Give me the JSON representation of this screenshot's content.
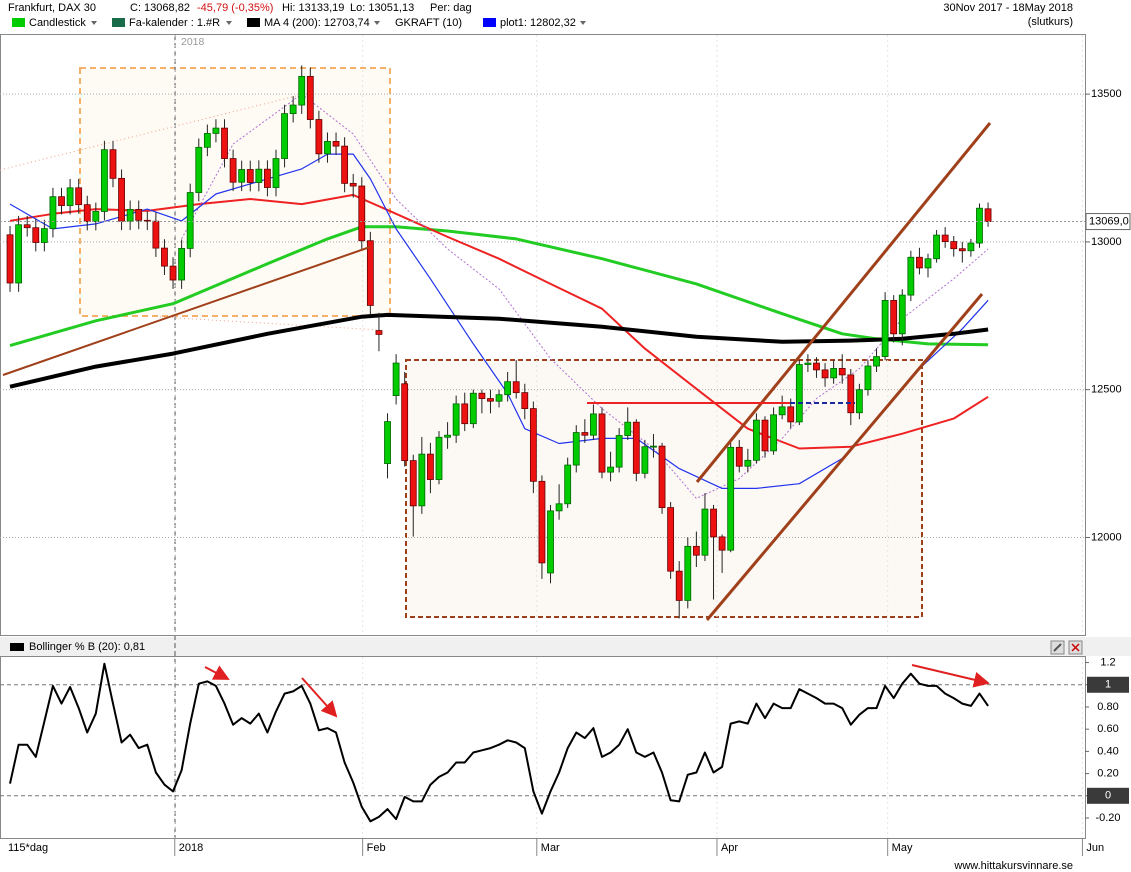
{
  "header": {
    "instrument": "Frankfurt, DAX 30",
    "close": "C: 13068,82",
    "change": "-45,79 (-0,35%)",
    "high": "Hi: 13133,19",
    "low": "Lo: 13051,13",
    "period": "Per: dag",
    "date_range": "30Nov 2017 - 18May 2018",
    "price_type": "(slutkurs)",
    "legend": [
      {
        "name": "Candlestick",
        "color": "#00cc00"
      },
      {
        "name": "Fa-kalender : 1.#R",
        "color": "#1a6b4a"
      },
      {
        "name": "MA 4 (200): 12703,74",
        "color": "#000000"
      },
      {
        "name": "GKRAFT (10)"
      },
      {
        "name": "plot1: 12802,32",
        "color": "#0000ff"
      }
    ],
    "crosshair_label": "2018",
    "period_label": "115*dag",
    "footer": "www.hittakursvinnare.se"
  },
  "chart_data": [
    {
      "type": "candlestick",
      "up_color": "#00cc00",
      "down_color": "#ee1111",
      "last_label": "13069,0",
      "x": [
        0,
        1,
        2,
        3,
        4,
        5,
        6,
        7,
        8,
        9,
        10,
        11,
        12,
        13,
        14,
        15,
        16,
        17,
        18,
        19,
        20,
        21,
        22,
        23,
        24,
        25,
        26,
        27,
        28,
        29,
        30,
        31,
        32,
        33,
        34,
        35,
        36,
        37,
        38,
        39,
        40,
        41,
        42,
        43,
        44,
        45,
        46,
        47,
        48,
        49,
        50,
        51,
        52,
        53,
        54,
        55,
        56,
        57,
        58,
        59,
        60,
        61,
        62,
        63,
        64,
        65,
        66,
        67,
        68,
        69,
        70,
        71,
        72,
        73,
        74,
        75,
        76,
        77,
        78,
        79,
        80,
        81,
        82,
        83,
        84,
        85,
        86,
        87,
        88,
        89,
        90,
        91,
        92,
        93,
        94,
        95,
        96,
        97,
        98,
        99,
        100,
        101,
        102,
        103,
        104,
        105,
        106,
        107,
        108,
        109,
        110,
        111,
        112,
        113,
        114
      ],
      "open": [
        13024,
        12861,
        13058,
        13048,
        12998,
        13045,
        13153,
        13123,
        13183,
        13126,
        13069,
        13103,
        13312,
        13215,
        13070,
        13110,
        13073,
        13070,
        12979,
        12918,
        12871,
        12978,
        13167,
        13320,
        13367,
        13385,
        13282,
        13202,
        13245,
        13201,
        13246,
        13184,
        13282,
        13434,
        13463,
        13560,
        13414,
        13298,
        13340,
        13324,
        13198,
        13189,
        13004,
        12700,
        12250,
        12480,
        12520,
        12260,
        12107,
        12282,
        12196,
        12339,
        12346,
        12452,
        12385,
        12488,
        12470,
        12461,
        12483,
        12527,
        12490,
        12436,
        12190,
        11880,
        12090,
        12114,
        12245,
        12355,
        12346,
        12418,
        12221,
        12238,
        12345,
        12390,
        12217,
        12307,
        12309,
        12101,
        11886,
        11787,
        11970,
        11940,
        12096,
        12002,
        11957,
        12305,
        12241,
        12261,
        12397,
        12293,
        12415,
        12442,
        12391,
        12585,
        12590,
        12567,
        12540,
        12572,
        12550,
        12422,
        12500,
        12580,
        12612,
        12802,
        12689,
        12820,
        12948,
        12912,
        12943,
        13023,
        13001,
        12977,
        12970,
        12996,
        13112
      ],
      "high": [
        13054,
        13088,
        13088,
        13078,
        13075,
        13183,
        13183,
        13213,
        13213,
        13156,
        13133,
        13342,
        13342,
        13245,
        13140,
        13140,
        13103,
        13100,
        13009,
        12948,
        13008,
        13197,
        13350,
        13397,
        13415,
        13415,
        13312,
        13275,
        13275,
        13276,
        13276,
        13312,
        13464,
        13493,
        13597,
        13590,
        13444,
        13370,
        13370,
        13354,
        13230,
        13219,
        13034,
        12760,
        12420,
        12620,
        12560,
        12280,
        12340,
        12320,
        12360,
        12390,
        12480,
        12490,
        12500,
        12500,
        12500,
        12500,
        12560,
        12600,
        12520,
        12460,
        12210,
        12110,
        12180,
        12270,
        12380,
        12400,
        12450,
        12440,
        12290,
        12370,
        12440,
        12400,
        12330,
        12350,
        12320,
        12120,
        11920,
        12000,
        12020,
        12150,
        12110,
        12010,
        12320,
        12330,
        12300,
        12420,
        12410,
        12440,
        12480,
        12470,
        12600,
        12620,
        12610,
        12590,
        12600,
        12620,
        12570,
        12520,
        12600,
        12640,
        12830,
        12820,
        12840,
        12970,
        12980,
        12960,
        13040,
        13050,
        13020,
        13000,
        13010,
        13130,
        13133.19
      ],
      "low": [
        12831,
        12831,
        13018,
        12968,
        12968,
        13015,
        13093,
        13093,
        13096,
        13039,
        13039,
        13073,
        13185,
        13040,
        13040,
        13043,
        13040,
        12949,
        12888,
        12841,
        12841,
        12948,
        13137,
        13290,
        13337,
        13252,
        13172,
        13172,
        13171,
        13171,
        13154,
        13154,
        13252,
        13404,
        13433,
        13384,
        13268,
        13268,
        13294,
        13168,
        13150,
        12974,
        12755,
        12630,
        12200,
        12450,
        12240,
        12003,
        12080,
        12150,
        12180,
        12300,
        12320,
        12360,
        12370,
        12420,
        12420,
        12440,
        12460,
        12470,
        12400,
        12150,
        11860,
        11845,
        12060,
        12100,
        12220,
        12320,
        12330,
        12200,
        12190,
        12220,
        12330,
        12190,
        12200,
        12270,
        12080,
        11860,
        11726,
        11760,
        11900,
        11920,
        11790,
        11880,
        11950,
        12220,
        12220,
        12250,
        12270,
        12280,
        12400,
        12370,
        12380,
        12560,
        12540,
        12510,
        12520,
        12520,
        12380,
        12400,
        12480,
        12560,
        12600,
        12660,
        12650,
        12800,
        12890,
        12880,
        12930,
        12980,
        12950,
        12930,
        12950,
        12980,
        13051.13
      ],
      "close": [
        12861,
        13058,
        13048,
        12998,
        13045,
        13153,
        13123,
        13183,
        13126,
        13069,
        13103,
        13312,
        13215,
        13070,
        13110,
        13073,
        13070,
        12979,
        12918,
        12871,
        12978,
        13167,
        13320,
        13367,
        13385,
        13282,
        13202,
        13245,
        13201,
        13246,
        13184,
        13282,
        13434,
        13463,
        13560,
        13414,
        13298,
        13340,
        13324,
        13198,
        13189,
        13004,
        12785,
        12687,
        12392,
        12590,
        12260,
        12107,
        12282,
        12196,
        12339,
        12346,
        12452,
        12385,
        12488,
        12470,
        12461,
        12483,
        12527,
        12490,
        12436,
        12190,
        11914,
        12090,
        12114,
        12245,
        12355,
        12346,
        12418,
        12221,
        12238,
        12345,
        12390,
        12217,
        12307,
        12309,
        12101,
        11886,
        11787,
        11970,
        11940,
        12096,
        12002,
        11957,
        12305,
        12241,
        12261,
        12397,
        12293,
        12415,
        12442,
        12391,
        12585,
        12590,
        12567,
        12540,
        12572,
        12550,
        12422,
        12500,
        12580,
        12612,
        12802,
        12689,
        12820,
        12948,
        12912,
        12943,
        13023,
        13001,
        12977,
        12970,
        12996,
        13114,
        13068.82
      ],
      "lines": [
        {
          "color": "#22cc22",
          "width": 3,
          "x": [
            0,
            10,
            19,
            30,
            37,
            41,
            45,
            51,
            59,
            69,
            80,
            90,
            97,
            101,
            107,
            114
          ],
          "values": [
            12649,
            12733,
            12791,
            12926,
            13010,
            13051,
            13051,
            13037,
            13010,
            12943,
            12858,
            12757,
            12689,
            12672,
            12655,
            12652
          ]
        },
        {
          "color": "#ee2222",
          "width": 2,
          "x": [
            0,
            5,
            10,
            16,
            22,
            28,
            34,
            40,
            45,
            51,
            57,
            63,
            69,
            74,
            80,
            86,
            92,
            98,
            104,
            110,
            114
          ],
          "values": [
            13071,
            13095,
            13111,
            13105,
            13128,
            13145,
            13128,
            13159,
            13095,
            13017,
            12943,
            12858,
            12774,
            12639,
            12503,
            12368,
            12301,
            12307,
            12351,
            12402,
            12476
          ]
        },
        {
          "color": "#b070d0",
          "width": 1,
          "dash": "2,2",
          "x": [
            20,
            26,
            34,
            40,
            45,
            51,
            57,
            63,
            69,
            75,
            80,
            85,
            90,
            94,
            99,
            104,
            110,
            114
          ],
          "values": [
            13010,
            13331,
            13500,
            13365,
            13145,
            12976,
            12841,
            12605,
            12436,
            12301,
            12132,
            12199,
            12335,
            12470,
            12571,
            12740,
            12875,
            12976
          ]
        },
        {
          "color": "#2233ee",
          "width": 1.2,
          "x": [
            0,
            5,
            10,
            16,
            20,
            24,
            30,
            34,
            37,
            40,
            42,
            45,
            49,
            54,
            58,
            60,
            64,
            69,
            73,
            78,
            83,
            87,
            92,
            97,
            101,
            106,
            111,
            114
          ],
          "values": [
            13128,
            13044,
            13061,
            13111,
            13071,
            13162,
            13213,
            13247,
            13297,
            13297,
            13213,
            13044,
            12875,
            12655,
            12487,
            12368,
            12318,
            12335,
            12335,
            12233,
            12166,
            12166,
            12182,
            12267,
            12402,
            12571,
            12706,
            12802.32
          ]
        },
        {
          "color": "#000000",
          "width": 4,
          "x": [
            0,
            10,
            19,
            30,
            41,
            44,
            57,
            69,
            80,
            90,
            98,
            104,
            110,
            114
          ],
          "values": [
            12510,
            12578,
            12622,
            12689,
            12747,
            12753,
            12740,
            12713,
            12679,
            12662,
            12666,
            12672,
            12689,
            12703.74
          ]
        }
      ],
      "xlim": [
        -1.17,
        125.3
      ],
      "ylim": [
        11670,
        13700
      ],
      "yticks": [
        12000,
        12500,
        13000,
        13500
      ],
      "xticks": [
        {
          "value": 19.2,
          "label": "2018"
        },
        {
          "value": 41.1,
          "label": "Feb"
        },
        {
          "value": 61.4,
          "label": "Mar"
        },
        {
          "value": 82.4,
          "label": "Apr"
        },
        {
          "value": 102.3,
          "label": "May"
        },
        {
          "value": 125.0,
          "label": "Jun"
        }
      ],
      "grid": true
    },
    {
      "type": "line",
      "title": "Bollinger % B (20): 0,81",
      "color": "#000000",
      "values": [
        0.11,
        0.46,
        0.46,
        0.35,
        0.67,
        0.99,
        0.83,
        0.98,
        0.79,
        0.57,
        0.74,
        1.19,
        0.83,
        0.48,
        0.55,
        0.43,
        0.46,
        0.21,
        0.1,
        0.04,
        0.23,
        0.65,
        1.01,
        1.03,
        0.99,
        0.83,
        0.64,
        0.7,
        0.65,
        0.74,
        0.57,
        0.76,
        0.92,
        0.94,
        0.99,
        0.83,
        0.59,
        0.61,
        0.57,
        0.3,
        0.12,
        -0.1,
        -0.23,
        -0.19,
        -0.12,
        -0.21,
        -0.01,
        -0.05,
        -0.05,
        0.1,
        0.17,
        0.21,
        0.3,
        0.3,
        0.39,
        0.41,
        0.43,
        0.46,
        0.5,
        0.48,
        0.43,
        0.04,
        -0.16,
        0.04,
        0.21,
        0.43,
        0.57,
        0.52,
        0.61,
        0.35,
        0.39,
        0.46,
        0.6,
        0.39,
        0.35,
        0.39,
        0.21,
        -0.04,
        -0.05,
        0.19,
        0.21,
        0.39,
        0.21,
        0.26,
        0.65,
        0.67,
        0.65,
        0.83,
        0.7,
        0.83,
        0.79,
        0.79,
        0.96,
        0.92,
        0.88,
        0.83,
        0.83,
        0.79,
        0.64,
        0.73,
        0.79,
        0.79,
        0.99,
        0.88,
        1.01,
        1.1,
        1.01,
        0.99,
        0.99,
        0.92,
        0.88,
        0.83,
        0.81,
        0.92,
        0.81
      ],
      "ylim": [
        -0.38,
        1.25
      ],
      "yticks": [
        1.2,
        1,
        {
          "value": 0.8,
          "label": "0.80"
        },
        {
          "value": 0.6,
          "label": "0.60"
        },
        {
          "value": 0.4,
          "label": "0.40"
        },
        {
          "value": 0.2,
          "label": "0.20"
        },
        0,
        {
          "value": -0.2,
          "label": "-0.20"
        }
      ],
      "reference_lines": [
        1,
        0
      ]
    }
  ]
}
